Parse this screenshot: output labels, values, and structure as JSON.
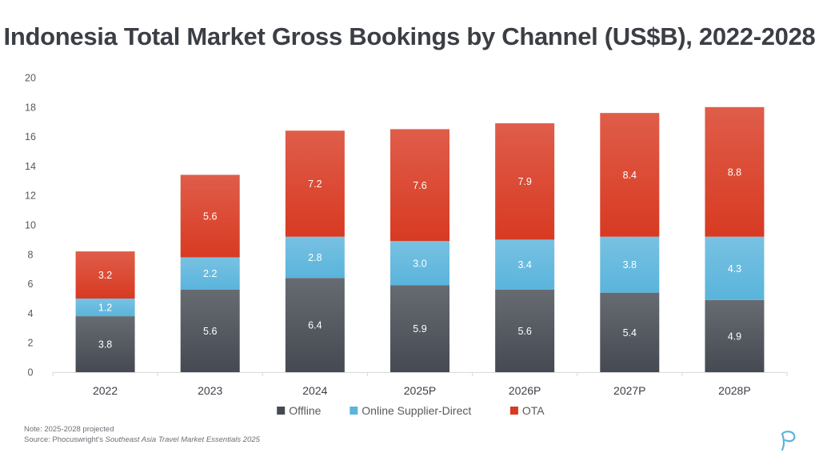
{
  "title": "Indonesia Total Market Gross Bookings by Channel (US$B), 2022-2028",
  "notes": {
    "note": "Note: 2025-2028 projected",
    "source_prefix": "Source: Phocuswright's ",
    "source_title": "Southeast Asia Travel Market Essentials 2025"
  },
  "colors": {
    "offline": "#454a52",
    "online_supplier_direct": "#5ab4dc",
    "ota": "#d83a22",
    "axis_text": "#595959",
    "label_text": "#ffffff"
  },
  "chart_data": {
    "type": "bar",
    "stacked": true,
    "title": "Indonesia Total Market Gross Bookings by Channel (US$B), 2022-2028",
    "xlabel": "",
    "ylabel": "",
    "ylim": [
      0,
      20
    ],
    "yticks": [
      0,
      2,
      4,
      6,
      8,
      10,
      12,
      14,
      16,
      18,
      20
    ],
    "categories": [
      "2022",
      "2023",
      "2024",
      "2025P",
      "2026P",
      "2027P",
      "2028P"
    ],
    "series": [
      {
        "name": "Offline",
        "values": [
          3.8,
          5.6,
          6.4,
          5.9,
          5.6,
          5.4,
          4.9
        ],
        "labels": [
          "3.8",
          "5.6",
          "6.4",
          "5.9",
          "5.6",
          "5.4",
          "4.9"
        ]
      },
      {
        "name": "Online Supplier-Direct",
        "values": [
          1.2,
          2.2,
          2.8,
          3.0,
          3.4,
          3.8,
          4.3
        ],
        "labels": [
          "1.2",
          "2.2",
          "2.8",
          "3.0",
          "3.4",
          "3.8",
          "4.3"
        ]
      },
      {
        "name": "OTA",
        "values": [
          3.2,
          5.6,
          7.2,
          7.6,
          7.9,
          8.4,
          8.8
        ],
        "labels": [
          "3.2",
          "5.6",
          "7.2",
          "7.6",
          "7.9",
          "8.4",
          "8.8"
        ]
      }
    ],
    "grid": false,
    "legend": "bottom-center"
  }
}
